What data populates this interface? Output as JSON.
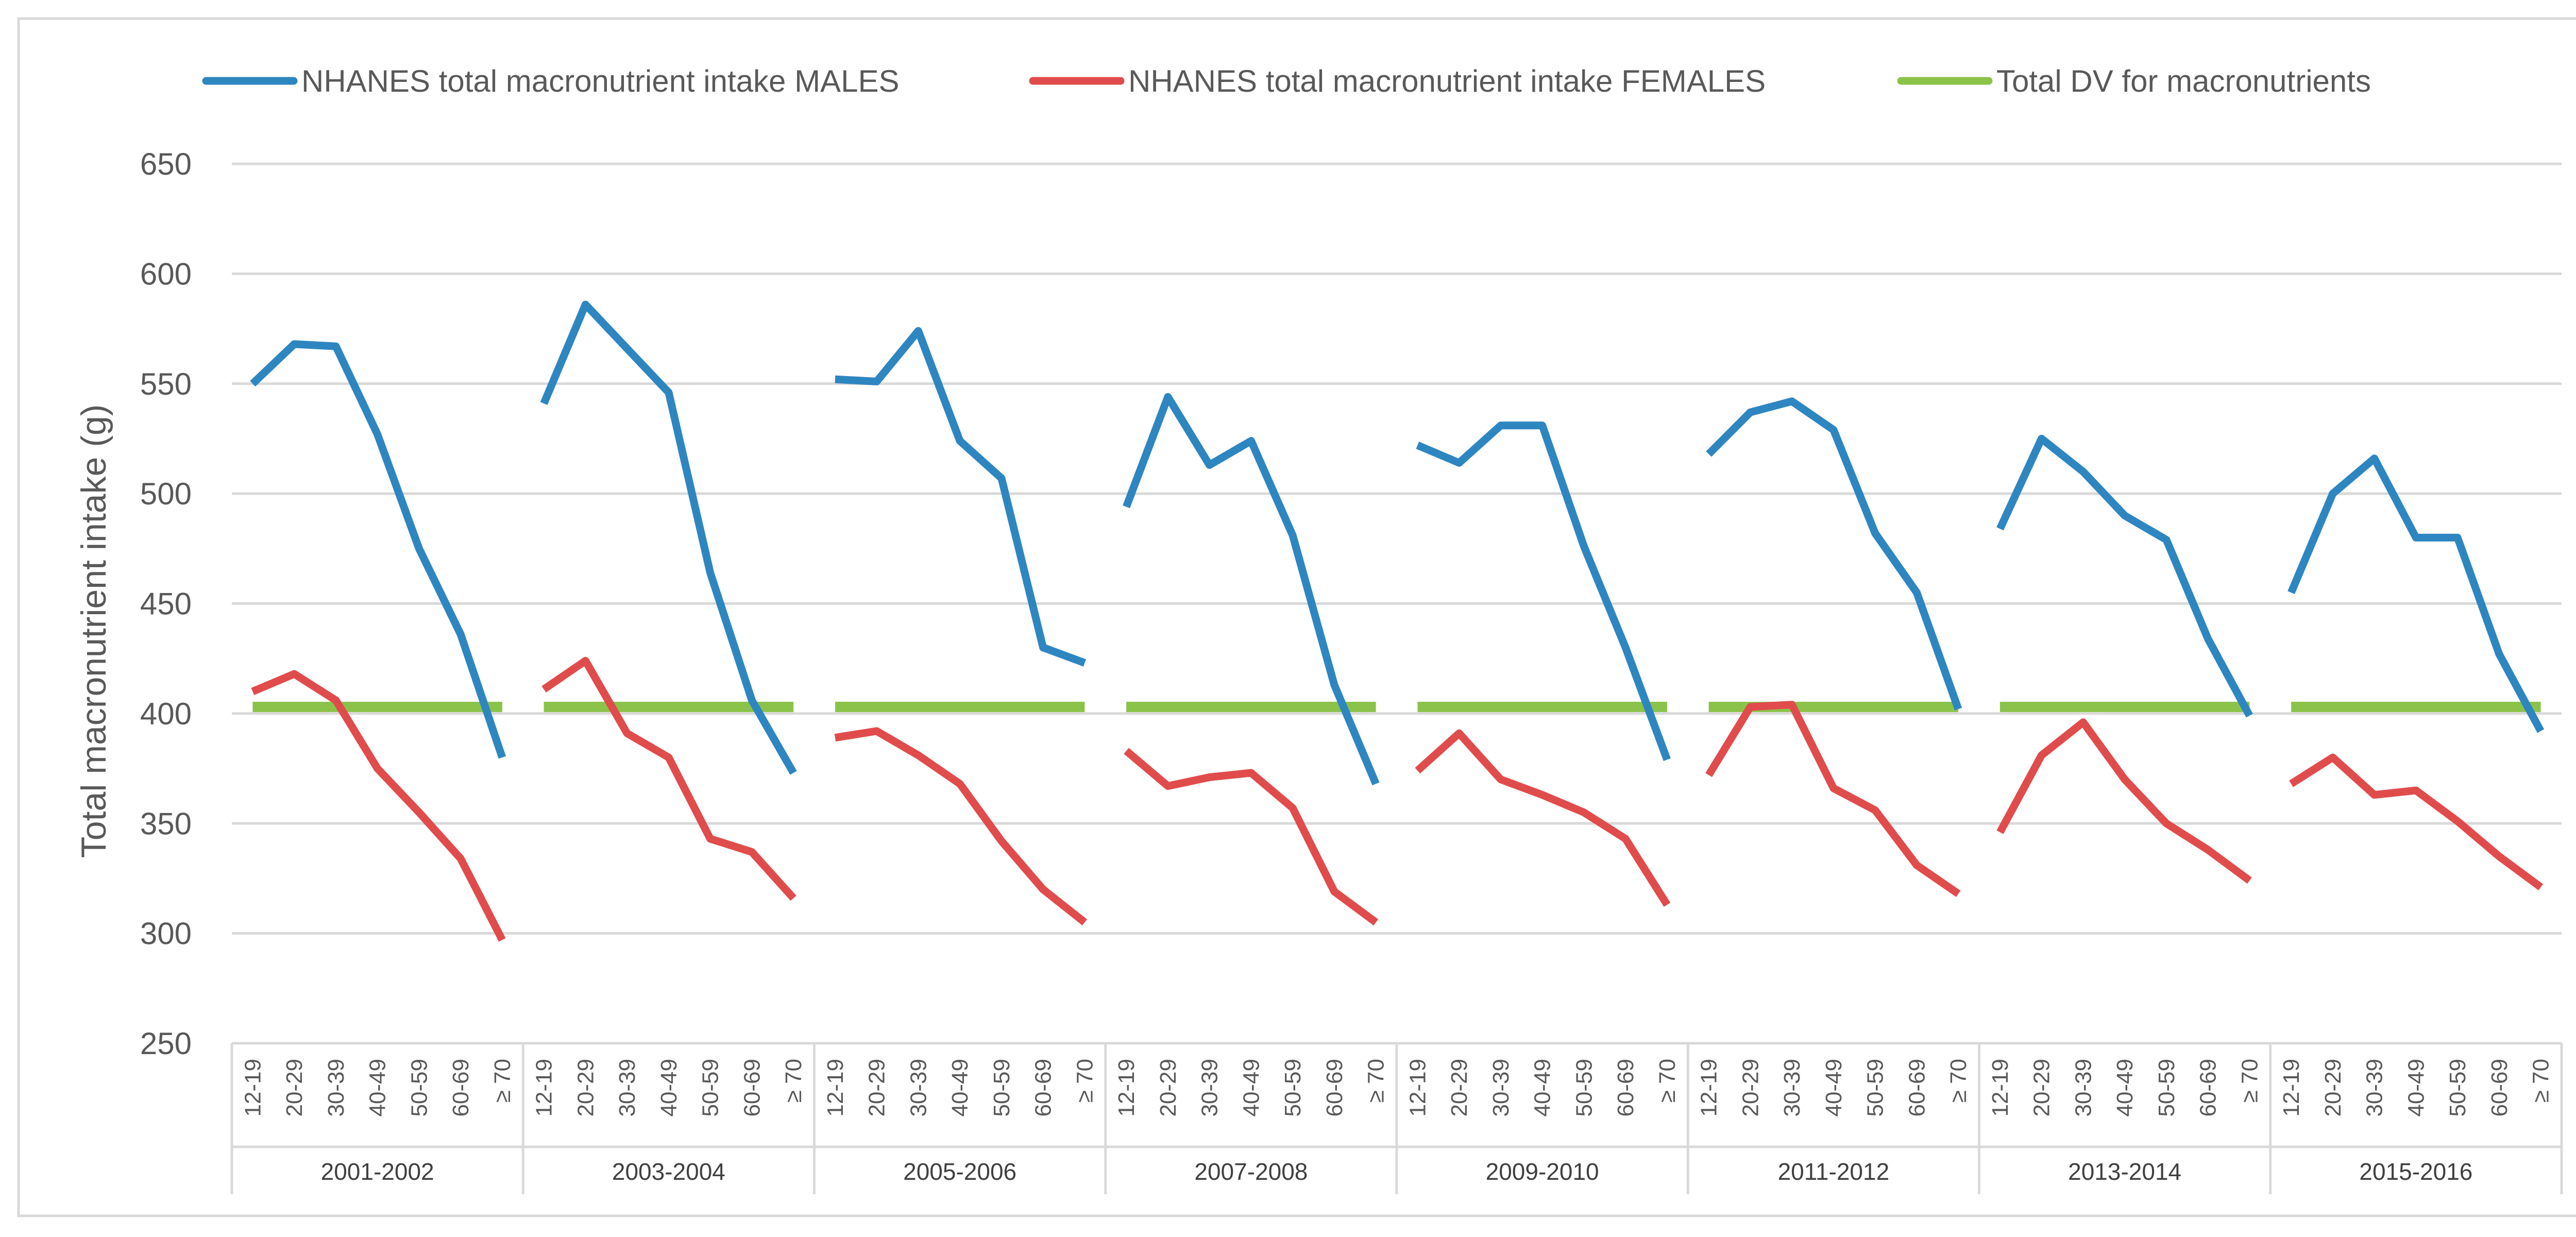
{
  "chart_data": {
    "type": "line",
    "title": "",
    "xlabel": "",
    "ylabel": "Total macronutrient intake (g)",
    "ylim": [
      250,
      650
    ],
    "yticks": [
      250,
      300,
      350,
      400,
      450,
      500,
      550,
      600,
      650
    ],
    "grid": true,
    "legend_position": "top",
    "age_groups": [
      "12-19",
      "20-29",
      "30-39",
      "40-49",
      "50-59",
      "60-69",
      "≥ 70"
    ],
    "survey_cycles": [
      "2001-2002",
      "2003-2004",
      "2005-2006",
      "2007-2008",
      "2009-2010",
      "2011-2012",
      "2013-2014",
      "2015-2016"
    ],
    "series": [
      {
        "name": "NHANES total macronutrient intake MALES",
        "color": "#2E86C1",
        "values": [
          [
            550,
            568,
            567,
            527,
            475,
            436,
            380
          ],
          [
            541,
            586,
            566,
            546,
            464,
            406,
            373
          ],
          [
            552,
            551,
            574,
            524,
            507,
            430,
            423
          ],
          [
            494,
            544,
            513,
            524,
            481,
            413,
            368
          ],
          [
            522,
            514,
            531,
            531,
            476,
            430,
            379
          ],
          [
            518,
            537,
            542,
            529,
            482,
            455,
            402
          ],
          [
            484,
            525,
            510,
            490,
            479,
            434,
            399
          ],
          [
            455,
            500,
            516,
            480,
            480,
            427,
            392
          ]
        ]
      },
      {
        "name": "NHANES total macronutrient intake FEMALES",
        "color": "#E04C4C",
        "values": [
          [
            410,
            418,
            406,
            375,
            355,
            334,
            297
          ],
          [
            411,
            424,
            391,
            380,
            343,
            337,
            316
          ],
          [
            389,
            392,
            381,
            368,
            342,
            320,
            305
          ],
          [
            383,
            367,
            371,
            373,
            357,
            319,
            305
          ],
          [
            374,
            391,
            370,
            363,
            355,
            343,
            313
          ],
          [
            372,
            403,
            404,
            366,
            356,
            331,
            318
          ],
          [
            346,
            381,
            396,
            370,
            350,
            338,
            324
          ],
          [
            368,
            380,
            363,
            365,
            351,
            335,
            321
          ]
        ]
      },
      {
        "name": "Total DV for macronutrients",
        "color": "#8BC34A",
        "values": [
          [
            403,
            403,
            403,
            403,
            403,
            403,
            403
          ],
          [
            403,
            403,
            403,
            403,
            403,
            403,
            403
          ],
          [
            403,
            403,
            403,
            403,
            403,
            403,
            403
          ],
          [
            403,
            403,
            403,
            403,
            403,
            403,
            403
          ],
          [
            403,
            403,
            403,
            403,
            403,
            403,
            403
          ],
          [
            403,
            403,
            403,
            403,
            403,
            403,
            403
          ],
          [
            403,
            403,
            403,
            403,
            403,
            403,
            403
          ],
          [
            403,
            403,
            403,
            403,
            403,
            403,
            403
          ]
        ]
      }
    ]
  }
}
